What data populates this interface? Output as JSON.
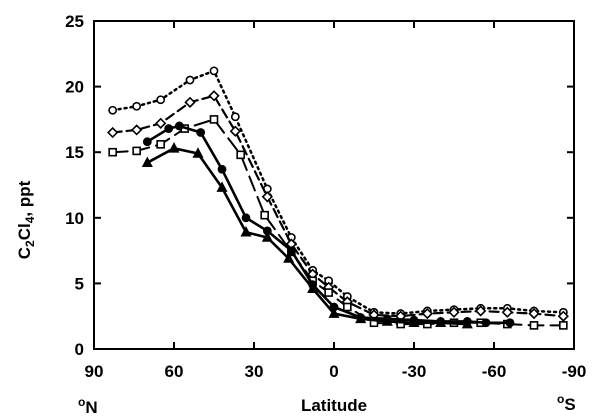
{
  "chart_data": {
    "type": "line",
    "title": "",
    "xlabel": "Latitude",
    "ylabel": {
      "parts": [
        [
          "C",
          false
        ],
        [
          "2",
          true
        ],
        [
          "Cl",
          false
        ],
        [
          "4",
          true
        ],
        [
          ", ppt",
          false
        ]
      ]
    },
    "hemisphere_labels": {
      "left": {
        "sup": "o",
        "main": "N"
      },
      "right": {
        "sup": "o",
        "main": "S"
      }
    },
    "xlim": [
      90,
      -90
    ],
    "ylim": [
      0,
      25
    ],
    "x_ticks": [
      90,
      60,
      30,
      0,
      -30,
      -60,
      -90
    ],
    "x_tick_labels": [
      "90",
      "60",
      "30",
      "0",
      "-30",
      "-60",
      "-90"
    ],
    "y_ticks": [
      0,
      5,
      10,
      15,
      20,
      25
    ],
    "y_tick_labels": [
      "0",
      "5",
      "10",
      "15",
      "20",
      "25"
    ],
    "grid": false,
    "series": [
      {
        "style": {
          "dash": "2,4",
          "marker": "circle",
          "fill": "#ffffff",
          "width": 2.5
        },
        "points": [
          [
            83,
            18.2
          ],
          [
            74,
            18.5
          ],
          [
            65,
            19.0
          ],
          [
            54,
            20.5
          ],
          [
            45,
            21.2
          ],
          [
            37,
            17.7
          ],
          [
            25,
            12.2
          ],
          [
            16,
            8.5
          ],
          [
            8,
            6.0
          ],
          [
            2,
            5.2
          ],
          [
            -5,
            4.0
          ],
          [
            -15,
            2.8
          ],
          [
            -25,
            2.7
          ],
          [
            -35,
            2.9
          ],
          [
            -45,
            3.0
          ],
          [
            -55,
            3.1
          ],
          [
            -65,
            3.1
          ],
          [
            -75,
            2.9
          ],
          [
            -86,
            2.8
          ]
        ]
      },
      {
        "style": {
          "dash": "9,5",
          "marker": "diamond",
          "fill": "#ffffff",
          "width": 2.2
        },
        "points": [
          [
            83,
            16.5
          ],
          [
            74,
            16.7
          ],
          [
            65,
            17.2
          ],
          [
            54,
            18.8
          ],
          [
            45,
            19.3
          ],
          [
            37,
            16.6
          ],
          [
            25,
            11.6
          ],
          [
            16,
            8.0
          ],
          [
            8,
            5.7
          ],
          [
            2,
            4.7
          ],
          [
            -5,
            3.6
          ],
          [
            -15,
            2.6
          ],
          [
            -25,
            2.5
          ],
          [
            -35,
            2.7
          ],
          [
            -45,
            2.8
          ],
          [
            -55,
            2.9
          ],
          [
            -65,
            2.8
          ],
          [
            -75,
            2.7
          ],
          [
            -86,
            2.5
          ]
        ]
      },
      {
        "style": {
          "dash": "15,7",
          "marker": "square",
          "fill": "#ffffff",
          "width": 2.0
        },
        "points": [
          [
            83,
            15.0
          ],
          [
            74,
            15.1
          ],
          [
            65,
            15.6
          ],
          [
            56,
            16.8
          ],
          [
            45,
            17.5
          ],
          [
            35,
            14.8
          ],
          [
            26,
            10.2
          ],
          [
            16,
            7.4
          ],
          [
            8,
            5.2
          ],
          [
            2,
            4.3
          ],
          [
            -5,
            3.2
          ],
          [
            -15,
            2.0
          ],
          [
            -25,
            1.9
          ],
          [
            -35,
            1.9
          ],
          [
            -45,
            2.0
          ],
          [
            -55,
            2.0
          ],
          [
            -65,
            1.9
          ],
          [
            -75,
            1.8
          ],
          [
            -86,
            1.8
          ]
        ]
      },
      {
        "style": {
          "dash": "",
          "marker": "circle",
          "fill": "#000000",
          "width": 2.6
        },
        "points": [
          [
            70,
            15.8
          ],
          [
            62,
            16.8
          ],
          [
            58,
            17.0
          ],
          [
            50,
            16.5
          ],
          [
            42,
            13.7
          ],
          [
            33,
            10.0
          ],
          [
            25,
            9.0
          ],
          [
            16,
            7.5
          ],
          [
            8,
            4.9
          ],
          [
            0,
            3.2
          ],
          [
            -10,
            2.4
          ],
          [
            -20,
            2.3
          ],
          [
            -30,
            2.2
          ],
          [
            -40,
            2.1
          ],
          [
            -50,
            2.1
          ],
          [
            -57,
            2.0
          ],
          [
            -66,
            2.0
          ]
        ]
      },
      {
        "style": {
          "dash": "",
          "marker": "triangle",
          "fill": "#000000",
          "width": 2.6
        },
        "points": [
          [
            70,
            14.2
          ],
          [
            60,
            15.3
          ],
          [
            51,
            14.9
          ],
          [
            42,
            12.3
          ],
          [
            33,
            8.9
          ],
          [
            25,
            8.5
          ],
          [
            17,
            6.9
          ],
          [
            8,
            4.6
          ],
          [
            0,
            2.7
          ],
          [
            -10,
            2.3
          ],
          [
            -20,
            2.1
          ],
          [
            -30,
            2.0
          ],
          [
            -40,
            2.0
          ],
          [
            -50,
            1.9
          ]
        ]
      }
    ]
  }
}
